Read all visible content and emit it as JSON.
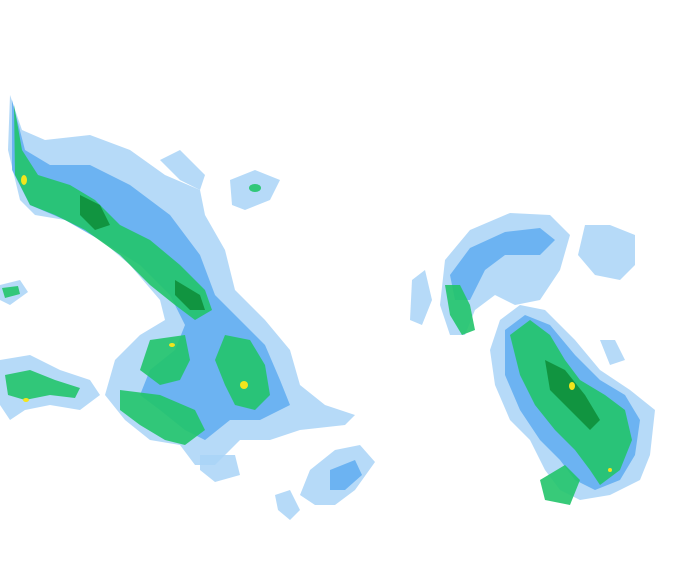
{
  "map": {
    "type": "precipitation-radar-overlay",
    "background_color": "#ffffff",
    "intensity_colors": {
      "light": "#8cc4f5",
      "light_moderate": "#4aa0f0",
      "moderate": "#22c46a",
      "moderate_heavy": "#0e8f3a",
      "heavy": "#f2e51c",
      "very_heavy": "#e08a10"
    }
  }
}
